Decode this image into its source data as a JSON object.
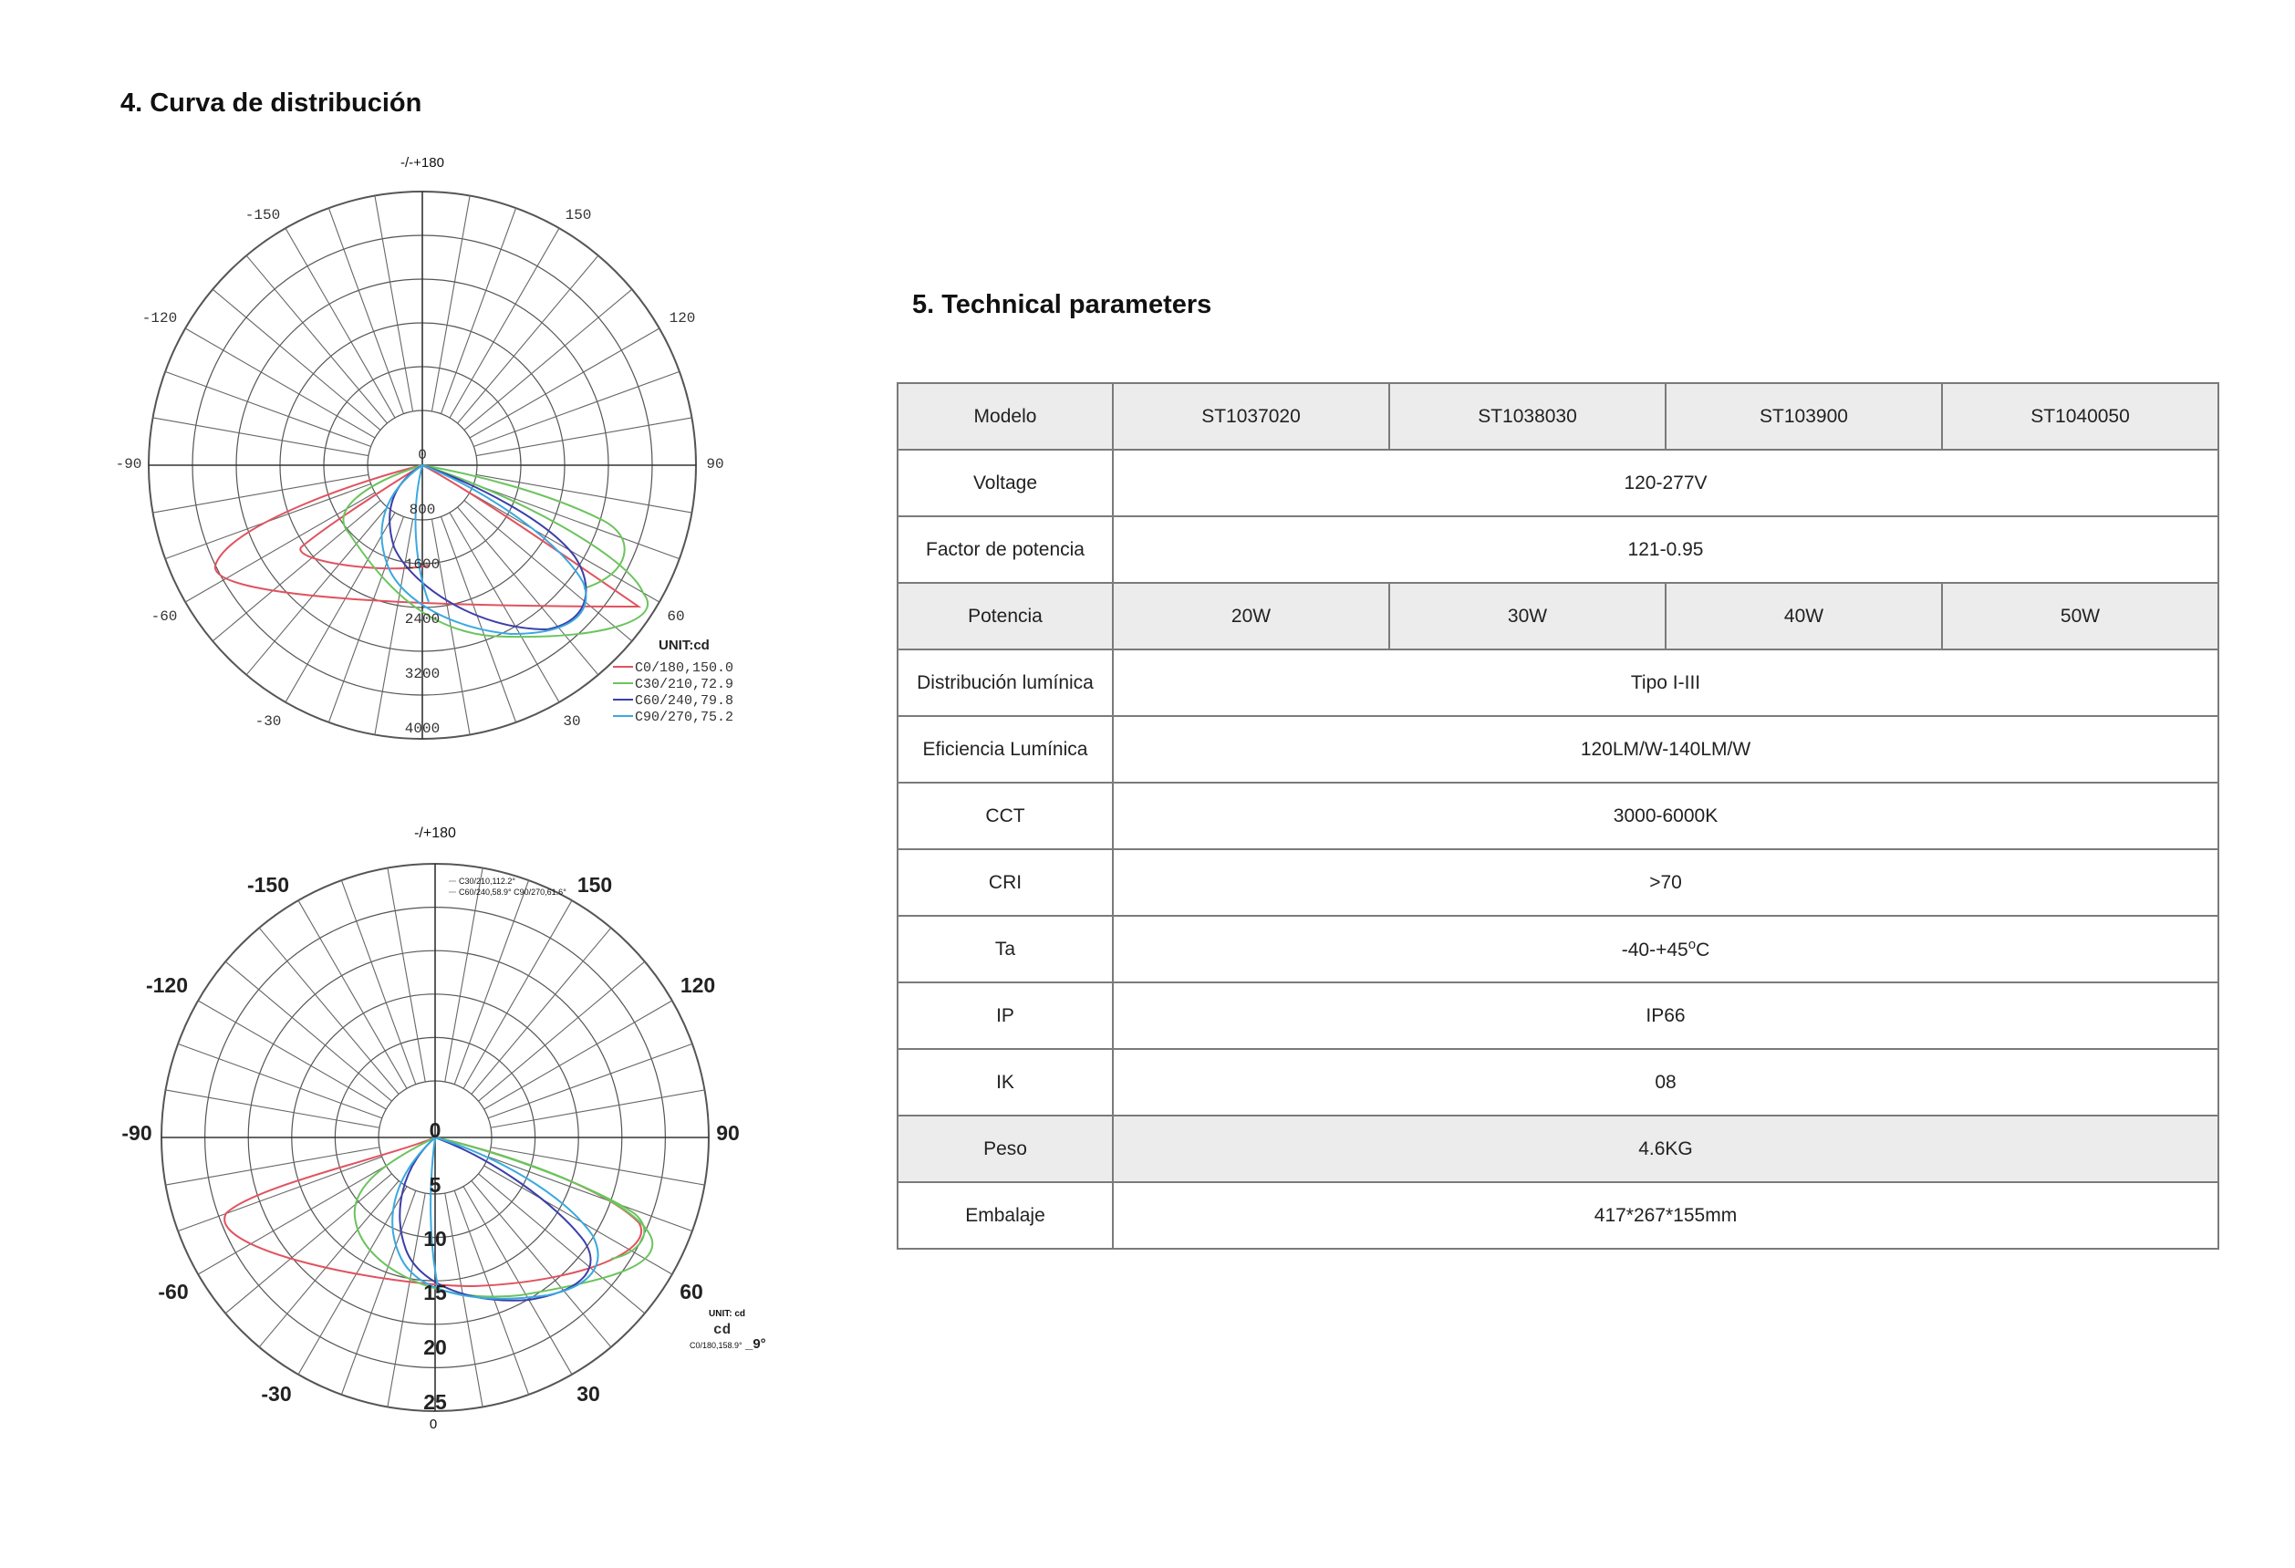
{
  "section4": {
    "title": "4. Curva de distribución",
    "chart1": {
      "top_label": "-/-+180",
      "angle_labels": {
        "m150": "-150",
        "p150": "150",
        "m120": "-120",
        "p120": "120",
        "m90": "-90",
        "p90": "90",
        "m60": "-60",
        "p60": "60",
        "m30": "-30",
        "p30": "30"
      },
      "radial_labels": [
        "0",
        "800",
        "1600",
        "2400",
        "3200",
        "4000"
      ],
      "unit": "UNIT:cd",
      "legend": [
        "C0/180,150.0",
        "C30/210,72.9",
        "C60/240,79.8",
        "C90/270,75.2"
      ]
    },
    "chart2": {
      "top_label": "-/+180",
      "bottom_label": "0",
      "angle_labels": {
        "m150": "-150",
        "p150": "150",
        "m120": "-120",
        "p120": "120",
        "m90": "-90",
        "p90": "90",
        "m60": "-60",
        "p60": "60",
        "m30": "-30",
        "p30": "30"
      },
      "radial_labels": [
        "0",
        "5",
        "10",
        "15",
        "20",
        "25"
      ],
      "legend_top": [
        "C30/210,112.2°",
        "C60/240,58.9° C90/270,61.6°"
      ],
      "unit": "UNIT: cd",
      "unit2": "cd",
      "legend_bottom": "C0/180,158.9°",
      "legend_bottom_suffix": "_9°"
    },
    "colors": {
      "c0": "#e0535f",
      "c30": "#6cc45e",
      "c60": "#3b3fa8",
      "c90": "#3aa9e0"
    }
  },
  "section5": {
    "title": "5. Technical parameters",
    "table": {
      "modelo": {
        "label": "Modelo",
        "values": [
          "ST1037020",
          "ST1038030",
          "ST103900",
          "ST1040050"
        ]
      },
      "voltage": {
        "label": "Voltage",
        "value": "120-277V"
      },
      "factor": {
        "label": "Factor de potencia",
        "value": "121-0.95"
      },
      "potencia": {
        "label": "Potencia",
        "values": [
          "20W",
          "30W",
          "40W",
          "50W"
        ]
      },
      "distribucion": {
        "label": "Distribución lumínica",
        "value": "Tipo I-III"
      },
      "eficiencia": {
        "label": "Eficiencia Lumínica",
        "value": "120LM/W-140LM/W"
      },
      "cct": {
        "label": "CCT",
        "value": "3000-6000K"
      },
      "cri": {
        "label": "CRI",
        "value": ">70"
      },
      "ta": {
        "label": "Ta",
        "value_a": "-40-+45",
        "sup": "o",
        "value_b": "C"
      },
      "ip": {
        "label": "IP",
        "value": "IP66"
      },
      "ik": {
        "label": "IK",
        "value": "08"
      },
      "peso": {
        "label": "Peso",
        "value": "4.6KG"
      },
      "embalaje": {
        "label": "Embalaje",
        "value": "417*267*155mm"
      }
    }
  }
}
